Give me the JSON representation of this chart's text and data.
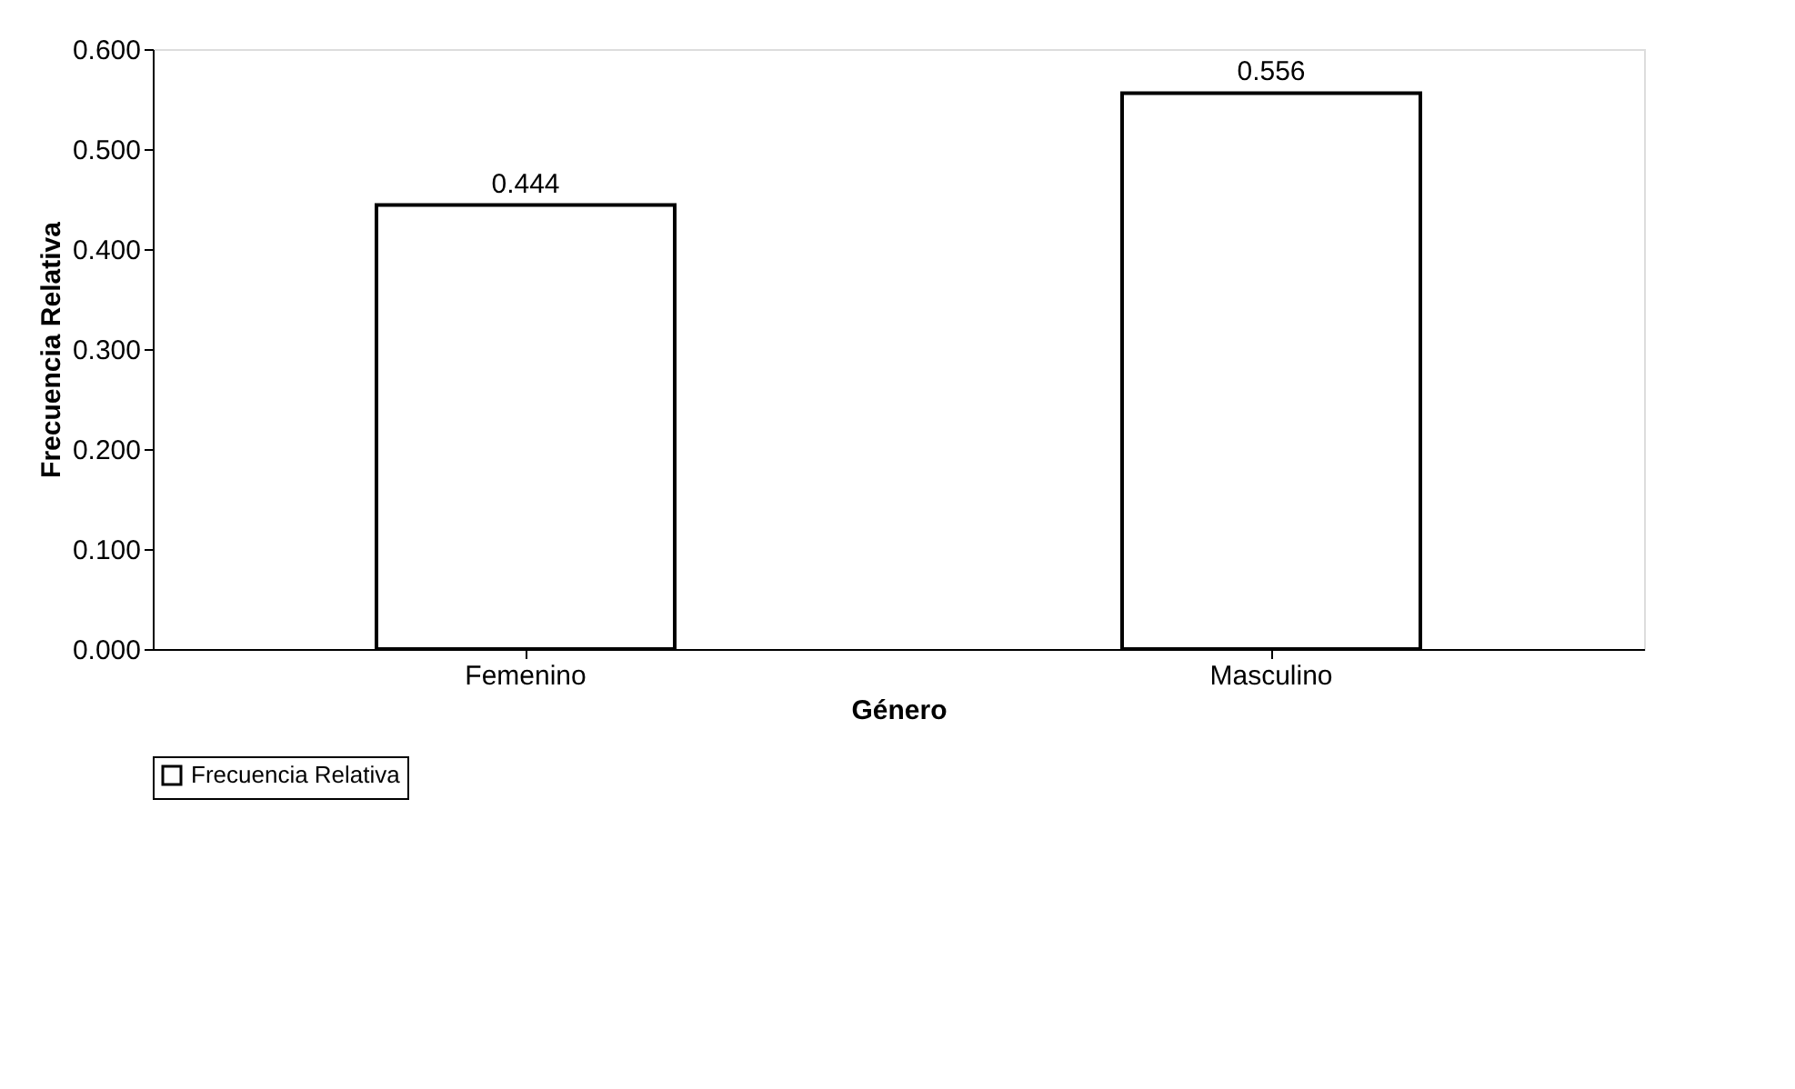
{
  "chart_data": {
    "type": "bar",
    "xlabel": "Género",
    "ylabel": "Frecuencia Relativa",
    "categories": [
      "Femenino",
      "Masculino"
    ],
    "series": [
      {
        "name": "Frecuencia Relativa",
        "color": "#ffffff",
        "values": [
          0.444,
          0.556
        ]
      }
    ],
    "ylim": [
      0,
      0.6
    ],
    "yticks": [
      {
        "value": 0,
        "label": "0.000"
      },
      {
        "value": 0.1,
        "label": "0.100"
      },
      {
        "value": 0.2,
        "label": "0.200"
      },
      {
        "value": 0.3,
        "label": "0.300"
      },
      {
        "value": 0.4,
        "label": "0.400"
      },
      {
        "value": 0.5,
        "label": "0.500"
      },
      {
        "value": 0.6,
        "label": "0.600"
      }
    ],
    "data_labels": true,
    "legend": "bottom",
    "grid": false
  }
}
